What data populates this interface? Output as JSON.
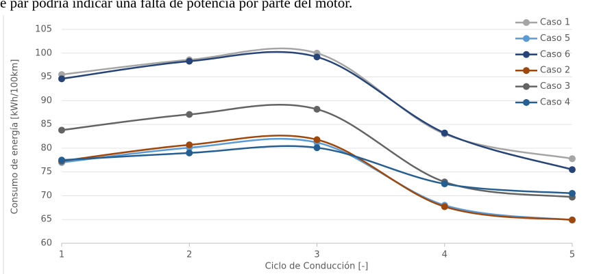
{
  "caption": "e par podría indicar una falta de potencia por parte del motor.",
  "chart_data": {
    "type": "line",
    "smooth": true,
    "x_label": "Ciclo de Conducción [-]",
    "y_label": "Consumo de energía [kWh/100km]",
    "x": [
      1,
      2,
      3,
      4,
      5
    ],
    "xlim": [
      1,
      5
    ],
    "xticks": [
      1,
      2,
      3,
      4,
      5
    ],
    "ylim": [
      60,
      105
    ],
    "yticks": [
      60,
      65,
      70,
      75,
      80,
      85,
      90,
      95,
      100,
      105
    ],
    "grid": true,
    "legend": "top-right",
    "series": [
      {
        "name": "Caso 1",
        "color": "#a5a5a5",
        "values": [
          95.5,
          98.6,
          100,
          83,
          77.8
        ]
      },
      {
        "name": "Caso 5",
        "color": "#5b9bd5",
        "values": [
          77,
          80.1,
          81.2,
          68,
          64.9
        ]
      },
      {
        "name": "Caso 6",
        "color": "#264478",
        "values": [
          94.6,
          98.3,
          99.2,
          83.2,
          75.5
        ]
      },
      {
        "name": "Caso 2",
        "color": "#9e480e",
        "values": [
          77.3,
          80.7,
          81.8,
          67.7,
          64.9
        ]
      },
      {
        "name": "Caso 3",
        "color": "#636363",
        "values": [
          83.8,
          87.1,
          88.2,
          72.9,
          69.7
        ]
      },
      {
        "name": "Caso 4",
        "color": "#255e91",
        "values": [
          77.5,
          79,
          80.1,
          72.5,
          70.5
        ]
      }
    ]
  }
}
